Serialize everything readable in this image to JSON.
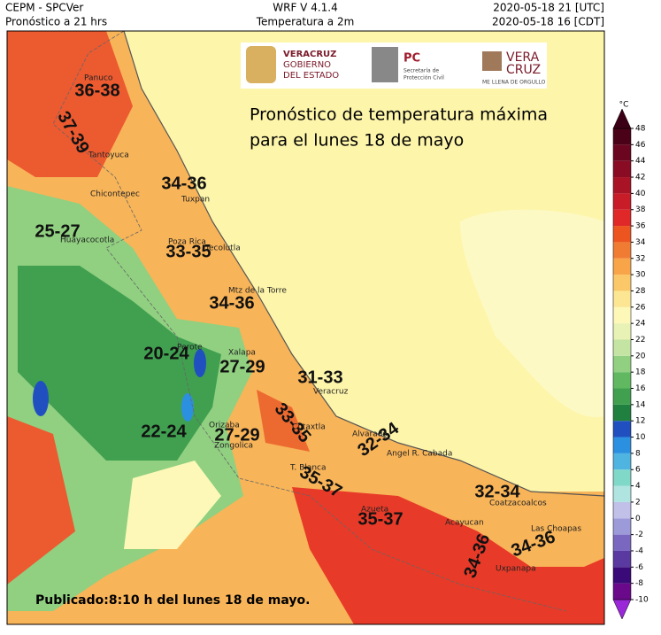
{
  "header": {
    "left": [
      "CEPM - SPCVer",
      "Pronóstico a 21 hrs"
    ],
    "center": [
      "WRF V 4.1.4",
      "Temperatura a 2m"
    ],
    "right": [
      "2020-05-18 21 [UTC]",
      "2020-05-18 16 [CDT]"
    ]
  },
  "title": [
    "Pronóstico de temperatura máxima",
    "para el lunes 18 de mayo"
  ],
  "published": "Publicado:8:10 h del lunes 18 de mayo.",
  "logos": {
    "veracruz": [
      "VERACRUZ",
      "GOBIERNO",
      "DEL ESTADO"
    ],
    "pc": [
      "PC",
      "Secretaría de",
      "Protección Civil"
    ],
    "veracruz_brand": [
      "VERA",
      "CRUZ",
      "ME LLENA DE ORGULLO"
    ]
  },
  "ranges": [
    "36-38",
    "37-39",
    "34-36",
    "25-27",
    "33-35",
    "34-36",
    "20-24",
    "27-29",
    "31-33",
    "33-35",
    "32-34",
    "22-24",
    "27-29",
    "35-37",
    "32-34",
    "35-37",
    "34-36",
    "34-36"
  ],
  "cities": [
    "Panuco",
    "Tantoyuca",
    "Chicontepec",
    "Tuxpan",
    "Huayacocotla",
    "Poza Rica",
    "Tecolutla",
    "Mtz de la Torre",
    "Perote",
    "Xalapa",
    "Veracruz",
    "Orizaba",
    "Cotaxtla",
    "Zongolica",
    "Alvarado",
    "Angel R. Cabada",
    "T. Blanca",
    "Azueta",
    "Coatzacoalcos",
    "Acayucan",
    "Las Choapas",
    "Uxpanapa"
  ],
  "colorbar": {
    "unit": "°C",
    "ticks": [
      -10,
      -8,
      -6,
      -4,
      -2,
      0,
      2,
      4,
      6,
      8,
      10,
      12,
      14,
      16,
      18,
      20,
      22,
      24,
      26,
      28,
      30,
      32,
      34,
      36,
      38,
      40,
      42,
      44,
      46,
      48
    ],
    "colors": [
      "#9a28d8",
      "#6a0a8a",
      "#3a0a78",
      "#5a3aa0",
      "#7a68c0",
      "#9c9ad8",
      "#c0c0e8",
      "#b0e4e0",
      "#80d8c8",
      "#50b4e0",
      "#2c90e0",
      "#2050c0",
      "#208040",
      "#40a050",
      "#60b860",
      "#90d080",
      "#c4e4a4",
      "#e8f2b4",
      "#fdf8b8",
      "#fce694",
      "#fac868",
      "#f8a448",
      "#f07c34",
      "#ec5420",
      "#e02828",
      "#c81c28",
      "#a81426",
      "#8a0c24",
      "#6a0620",
      "#4a0218",
      "#3c0016"
    ]
  }
}
